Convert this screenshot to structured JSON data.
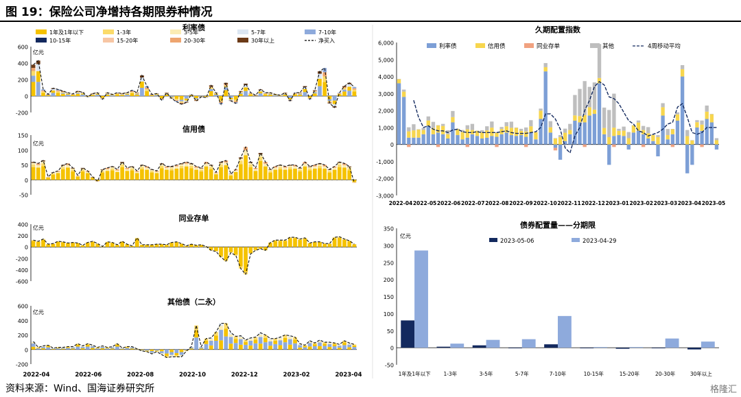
{
  "figure_title": "图 19：保险公司净增持各期限券种情况",
  "source": "资料来源：Wind、国海证券研究所",
  "watermark": "格隆汇",
  "chart_data": [
    {
      "id": "rate-bonds",
      "type": "bar",
      "stacked": true,
      "title": "利率债",
      "unit": "亿元",
      "ylim": [
        -200,
        600
      ],
      "yticks": [
        "600",
        "400",
        "200",
        "0",
        "-200"
      ],
      "legend": [
        {
          "name": "1年及1年以下",
          "color": "#f5c200"
        },
        {
          "name": "1-3年",
          "color": "#fbdb6a"
        },
        {
          "name": "3-5年",
          "color": "#fbecb4"
        },
        {
          "name": "5-7年",
          "color": "#dce6f2"
        },
        {
          "name": "7-10年",
          "color": "#8eaadc"
        },
        {
          "name": "10-15年",
          "color": "#13295e"
        },
        {
          "name": "15-20年",
          "color": "#f7c6a4"
        },
        {
          "name": "20-30年",
          "color": "#eea56f"
        },
        {
          "name": "30年以上",
          "color": "#6b3a17"
        },
        {
          "name": "净买入",
          "color": "#000000",
          "style": "dash"
        }
      ],
      "net_buy_weekly": [
        380,
        430,
        80,
        20,
        95,
        80,
        60,
        40,
        25,
        60,
        45,
        -10,
        30,
        40,
        -40,
        40,
        20,
        40,
        30,
        40,
        70,
        40,
        250,
        120,
        20,
        30,
        -50,
        40,
        -30,
        -70,
        -100,
        -80,
        20,
        -60,
        -10,
        -20,
        130,
        40,
        -100,
        160,
        -60,
        -90,
        60,
        150,
        40,
        10,
        80,
        40,
        40,
        20,
        10,
        40,
        -60,
        40,
        40,
        120,
        -40,
        70,
        300,
        340,
        -90,
        -140,
        40,
        120,
        160,
        110
      ]
    },
    {
      "id": "credit-bonds",
      "type": "bar",
      "stacked": true,
      "title": "信用债",
      "unit": "亿元",
      "ylim": [
        -50,
        150
      ],
      "yticks": [
        "150",
        "100",
        "50",
        "0",
        "-50"
      ],
      "net_buy_weekly": [
        60,
        55,
        65,
        10,
        25,
        30,
        50,
        55,
        40,
        15,
        40,
        30,
        10,
        -5,
        35,
        40,
        45,
        35,
        60,
        40,
        45,
        30,
        50,
        45,
        35,
        30,
        55,
        45,
        45,
        50,
        55,
        60,
        55,
        45,
        40,
        60,
        50,
        25,
        60,
        65,
        20,
        35,
        75,
        110,
        60,
        40,
        90,
        60,
        35,
        45,
        50,
        45,
        50,
        50,
        40,
        60,
        45,
        50,
        55,
        50,
        35,
        45,
        60,
        55,
        45,
        -10
      ]
    },
    {
      "id": "interbank-cd",
      "type": "bar",
      "stacked": true,
      "title": "同业存单",
      "unit": "亿元",
      "ylim": [
        -600,
        400
      ],
      "yticks": [
        "400",
        "200",
        "0",
        "-200",
        "-400",
        "-600"
      ],
      "net_buy_weekly": [
        120,
        100,
        140,
        50,
        60,
        100,
        90,
        70,
        80,
        70,
        30,
        80,
        100,
        60,
        10,
        90,
        80,
        40,
        100,
        50,
        20,
        160,
        40,
        40,
        40,
        50,
        50,
        40,
        80,
        90,
        60,
        20,
        50,
        30,
        40,
        10,
        -60,
        -80,
        -180,
        -250,
        -100,
        -150,
        -380,
        -480,
        -120,
        -60,
        -30,
        -60,
        80,
        120,
        120,
        120,
        170,
        170,
        140,
        160,
        70,
        90,
        90,
        60,
        60,
        170,
        180,
        140,
        110,
        50
      ]
    },
    {
      "id": "other-bonds",
      "type": "bar",
      "stacked": true,
      "title": "其他债（二永）",
      "unit": "亿元",
      "ylim": [
        -200,
        600
      ],
      "yticks": [
        "600",
        "400",
        "200",
        "0",
        "-200"
      ],
      "net_buy_weekly": [
        110,
        30,
        50,
        60,
        20,
        30,
        30,
        40,
        40,
        80,
        50,
        80,
        60,
        30,
        50,
        30,
        40,
        80,
        20,
        40,
        40,
        10,
        -20,
        -30,
        -60,
        -30,
        -70,
        -110,
        -100,
        -100,
        -100,
        -20,
        40,
        330,
        40,
        150,
        160,
        240,
        360,
        360,
        230,
        180,
        190,
        130,
        160,
        170,
        230,
        200,
        150,
        150,
        170,
        200,
        190,
        170,
        80,
        60,
        120,
        90,
        130,
        100,
        100,
        90,
        70,
        120,
        90,
        70
      ]
    },
    {
      "id": "long-allocation-index",
      "type": "bar",
      "stacked": true,
      "title": "久期配置指数",
      "ylim": [
        -3000,
        6000
      ],
      "yticks": [
        "6,000",
        "5,000",
        "4,000",
        "3,000",
        "2,000",
        "1,000",
        "0",
        "-1,000",
        "-2,000",
        "-3,000"
      ],
      "legend": [
        {
          "name": "利率债",
          "color": "#7d9fd6"
        },
        {
          "name": "信用债",
          "color": "#f7d64e"
        },
        {
          "name": "同业存单",
          "color": "#f0a280"
        },
        {
          "name": "其他",
          "color": "#bebebe"
        },
        {
          "name": "4周移动平均",
          "color": "#13295e",
          "style": "dash"
        }
      ],
      "rate_bond_weekly": [
        3600,
        2800,
        400,
        400,
        400,
        600,
        1100,
        600,
        700,
        600,
        350,
        1300,
        550,
        300,
        400,
        600,
        500,
        350,
        400,
        500,
        450,
        600,
        700,
        550,
        500,
        550,
        450,
        700,
        300,
        1500,
        4300,
        700,
        -200,
        -900,
        200,
        600,
        1400,
        1300,
        1300,
        1700,
        1800,
        3600,
        600,
        -1200,
        500,
        550,
        500,
        -300,
        700,
        800,
        600,
        350,
        200,
        -700,
        1700,
        300,
        600,
        1400,
        4000,
        -1700,
        -1200,
        1000,
        800,
        1500,
        1300,
        -300
      ],
      "moving_average_weekly": [
        null,
        null,
        null,
        2600,
        1600,
        1000,
        1100,
        900,
        800,
        800,
        700,
        850,
        900,
        750,
        700,
        700,
        750,
        700,
        700,
        700,
        700,
        750,
        800,
        700,
        650,
        650,
        650,
        700,
        750,
        1000,
        1800,
        1800,
        1500,
        900,
        -200,
        -500,
        500,
        1000,
        2000,
        2600,
        3400,
        3700,
        3500,
        2800,
        2700,
        2400,
        1900,
        1400,
        1200,
        800,
        700,
        500,
        600,
        700,
        900,
        1200,
        1300,
        2200,
        2400,
        1600,
        700,
        600,
        700,
        1000,
        1000,
        1000
      ]
    },
    {
      "id": "allocation-by-tenor",
      "type": "bar",
      "title": "债券配置量——分期限",
      "unit": "亿元",
      "ylim": [
        -50,
        350
      ],
      "yticks": [
        "350",
        "300",
        "250",
        "200",
        "150",
        "100",
        "50",
        "0",
        "-50"
      ],
      "categories": [
        "1年及1年以下",
        "1-3年",
        "3-5年",
        "5-7年",
        "7-10年",
        "10-15年",
        "15-20年",
        "20-30年",
        "30年以上"
      ],
      "series": [
        {
          "name": "2023-05-06",
          "color": "#13295e",
          "values": [
            80,
            3,
            7,
            0,
            10,
            0,
            -3,
            0,
            -5
          ]
        },
        {
          "name": "2023-04-29",
          "color": "#8eaadc",
          "values": [
            285,
            12,
            23,
            25,
            93,
            2,
            2,
            27,
            18
          ]
        }
      ]
    }
  ],
  "x_axis_left": {
    "ticks": [
      "2022-04",
      "2022-06",
      "2022-08",
      "2022-10",
      "2022-12",
      "2023-02",
      "2023-04"
    ]
  },
  "x_axis_right": {
    "ticks": [
      "2022-04",
      "2022-05",
      "2022-06",
      "2022-07",
      "2022-08",
      "2022-09",
      "2022-10",
      "2022-11",
      "2022-12",
      "2023-01",
      "2023-02",
      "2023-03",
      "2023-04",
      "2023-05"
    ]
  }
}
